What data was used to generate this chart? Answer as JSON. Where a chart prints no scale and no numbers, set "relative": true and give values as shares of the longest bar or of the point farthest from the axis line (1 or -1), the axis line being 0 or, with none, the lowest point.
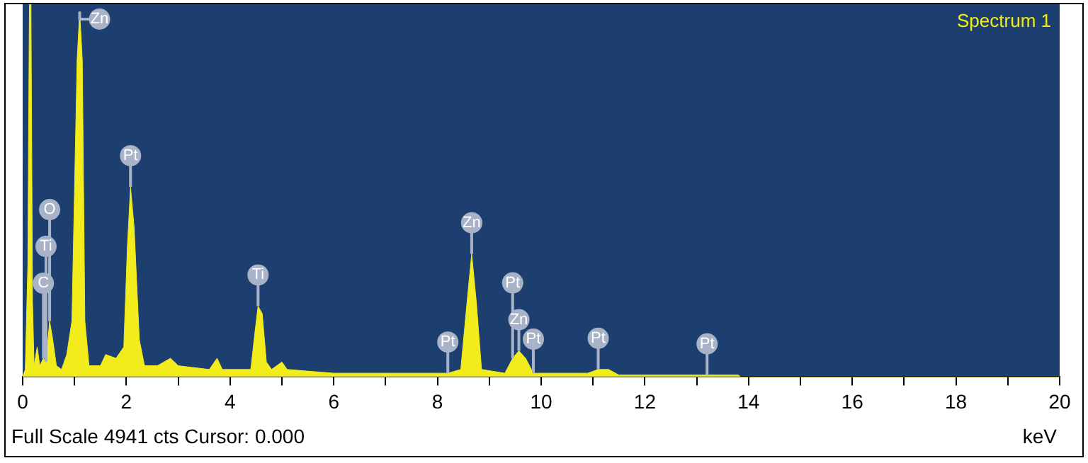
{
  "chart_data": {
    "type": "area",
    "title": "Spectrum 1",
    "xlabel": "keV",
    "relative": true,
    "xlim": [
      0,
      20
    ],
    "xticks": [
      0,
      {
        "value": 1,
        "label": null
      },
      2,
      {
        "value": 3,
        "label": null
      },
      4,
      {
        "value": 5,
        "label": null
      },
      6,
      {
        "value": 7,
        "label": null
      },
      8,
      {
        "value": 9,
        "label": null
      },
      10,
      {
        "value": 11,
        "label": null
      },
      12,
      {
        "value": 13,
        "label": null
      },
      14,
      {
        "value": 15,
        "label": null
      },
      16,
      {
        "value": 17,
        "label": null
      },
      18,
      {
        "value": 19,
        "label": null
      },
      20
    ],
    "x": [
      0,
      0.05,
      0.1,
      0.13,
      0.16,
      0.19,
      0.22,
      0.28,
      0.33,
      0.4,
      0.45,
      0.52,
      0.58,
      0.65,
      0.75,
      0.85,
      0.95,
      1.05,
      1.1,
      1.15,
      1.2,
      1.28,
      1.5,
      1.6,
      1.8,
      1.95,
      2.02,
      2.08,
      2.15,
      2.25,
      2.35,
      2.6,
      2.85,
      3.0,
      3.6,
      3.75,
      3.85,
      4.4,
      4.48,
      4.54,
      4.62,
      4.7,
      4.8,
      5.0,
      5.1,
      6,
      8,
      8.2,
      8.45,
      8.57,
      8.66,
      8.75,
      8.85,
      9.3,
      9.45,
      9.57,
      9.7,
      9.85,
      10.9,
      11.1,
      11.3,
      11.5,
      13.2,
      13.8,
      13.85,
      20
    ],
    "values": [
      0,
      0.02,
      0.3,
      1,
      1,
      0.2,
      0.03,
      0.08,
      0.03,
      0.05,
      0.04,
      0.15,
      0.1,
      0.03,
      0.02,
      0.06,
      0.15,
      0.85,
      0.98,
      0.85,
      0.15,
      0.03,
      0.03,
      0.06,
      0.05,
      0.08,
      0.35,
      0.51,
      0.4,
      0.1,
      0.03,
      0.03,
      0.05,
      0.03,
      0.02,
      0.05,
      0.02,
      0.02,
      0.12,
      0.19,
      0.17,
      0.04,
      0.02,
      0.04,
      0.02,
      0.01,
      0.01,
      0.01,
      0.02,
      0.2,
      0.33,
      0.2,
      0.02,
      0.01,
      0.05,
      0.07,
      0.05,
      0.01,
      0.01,
      0.02,
      0.02,
      0.005,
      0.005,
      0.005,
      0,
      0
    ],
    "color": "#f2ec1c",
    "annotations": [
      {
        "text": "C",
        "x": 0.4,
        "y": 0.05
      },
      {
        "text": "Ti",
        "x": 0.45,
        "y": 0.04
      },
      {
        "text": "O",
        "x": 0.52,
        "y": 0.15
      },
      {
        "text": "Zn",
        "x": 1.1,
        "y": 0.98
      },
      {
        "text": "Pt",
        "x": 2.08,
        "y": 0.51
      },
      {
        "text": "Ti",
        "x": 4.54,
        "y": 0.19
      },
      {
        "text": "Pt",
        "x": 8.2,
        "y": 0.01
      },
      {
        "text": "Zn",
        "x": 8.66,
        "y": 0.33
      },
      {
        "text": "Zn",
        "x": 9.57,
        "y": 0.07
      },
      {
        "text": "Pt",
        "x": 9.45,
        "y": 0.05
      },
      {
        "text": "Pt",
        "x": 9.85,
        "y": 0.01
      },
      {
        "text": "Pt",
        "x": 11.1,
        "y": 0.02
      },
      {
        "text": "Pt",
        "x": 13.2,
        "y": 0.005
      },
      "Full Scale 4941 cts Cursor: 0.000"
    ]
  }
}
